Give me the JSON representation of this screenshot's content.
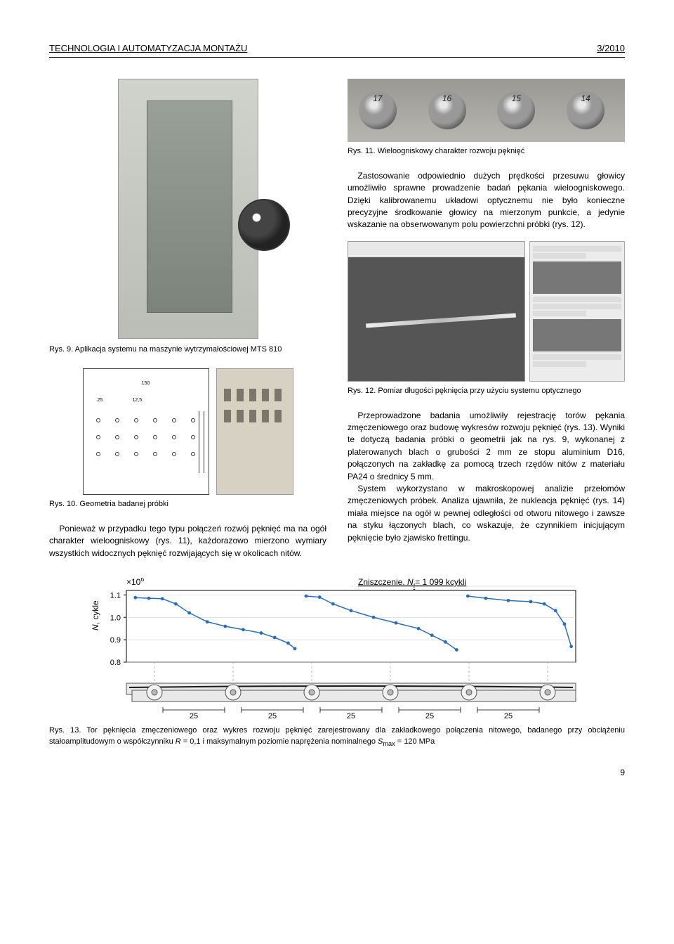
{
  "header": {
    "left": "TECHNOLOGIA I AUTOMATYZACJA MONTAŻU",
    "right": "3/2010"
  },
  "left": {
    "fig9_caption": "Rys. 9. Aplikacja systemu na maszynie wytrzymałościowej MTS 810",
    "fig10_caption": "Rys. 10. Geometria badanej próbki",
    "fig10_dims": {
      "width": "150",
      "d25": "25",
      "d125": "12,5"
    },
    "para1": "Ponieważ w przypadku tego typu połączeń rozwój pęknięć ma na ogół charakter wieloogniskowy (rys. 11), każdorazowo mierzono wymiary wszystkich widocznych pęknięć rozwijających się w okolicach nitów."
  },
  "right": {
    "fig11_labels": [
      "17",
      "16",
      "15",
      "14"
    ],
    "fig11_caption": "Rys. 11. Wieloogniskowy charakter rozwoju pęknięć",
    "para1": "Zastosowanie odpowiednio dużych prędkości przesuwu głowicy umożliwiło sprawne prowadzenie badań pękania wieloogniskowego. Dzięki kalibrowanemu układowi optycznemu nie było konieczne precyzyjne środkowanie głowicy na mierzonym punkcie, a jedynie wskazanie na obserwowanym polu powierzchni próbki (rys. 12).",
    "fig12_caption": "Rys. 12. Pomiar długości pęknięcia przy użyciu systemu optycznego",
    "para2": "Przeprowadzone badania umożliwiły rejestrację torów pękania zmęczeniowego oraz budowę wykresów rozwoju pęknięć (rys. 13). Wyniki te dotyczą badania próbki o geometrii jak na rys. 9, wykonanej z platerowanych blach o grubości 2 mm ze stopu aluminium D16, połączonych na zakładkę za pomocą trzech rzędów nitów z materiału PA24 o średnicy 5 mm.",
    "para3": "System wykorzystano w makroskopowej analizie przełomów zmęczeniowych próbek. Analiza ujawniła, że nukleacja pęknięć (rys. 14) miała miejsce na ogół w pewnej odległości od otworu nitowego i zawsze na styku łączonych blach, co wskazuje, że czynnikiem inicjującym pęknięcie było zjawisko frettingu."
  },
  "fig13": {
    "annotation_prefix": "Zniszczenie. ",
    "annotation_var": "N",
    "annotation_sub": "f",
    "annotation_suffix": "= 1 099 kcykli",
    "y_exp": "×10",
    "y_exp_sup": "6",
    "y_label_var": "N",
    "y_label_text": ", cykle",
    "y_ticks": [
      "0.8",
      "0.9",
      "1.0",
      "1.1"
    ],
    "spacing_label": "25",
    "series": {
      "x": [
        0.02,
        0.05,
        0.08,
        0.11,
        0.14,
        0.18,
        0.22,
        0.26,
        0.3,
        0.33,
        0.36,
        0.375,
        0.4,
        0.43,
        0.46,
        0.5,
        0.55,
        0.6,
        0.65,
        0.68,
        0.71,
        0.735,
        0.76,
        0.8,
        0.85,
        0.9,
        0.93,
        0.955,
        0.975,
        0.99
      ],
      "y": [
        1.088,
        1.085,
        1.083,
        1.06,
        1.02,
        0.98,
        0.96,
        0.945,
        0.93,
        0.91,
        0.885,
        0.86,
        1.095,
        1.09,
        1.06,
        1.03,
        1.0,
        0.975,
        0.95,
        0.92,
        0.89,
        0.855,
        1.095,
        1.085,
        1.075,
        1.07,
        1.06,
        1.03,
        0.97,
        0.87
      ],
      "breaks": [
        11,
        21
      ],
      "color": "#2b6db5"
    },
    "ylim": [
      0.8,
      1.12
    ],
    "xlim": [
      0,
      1
    ]
  },
  "fig13_caption_parts": {
    "lead": "Rys. 13. Tor pęknięcia zmęczeniowego oraz wykres rozwoju pęknięć zarejestrowany dla zakładkowego połączenia nitowego, badanego przy obciążeniu stałoamplitudowym o współczynniku ",
    "R": "R",
    "mid": " = 0,1 i maksymalnym poziomie naprężenia nominalnego ",
    "Smax": "S",
    "Smax_sub": "max",
    "tail": " = 120 MPa"
  },
  "pagenum": "9"
}
